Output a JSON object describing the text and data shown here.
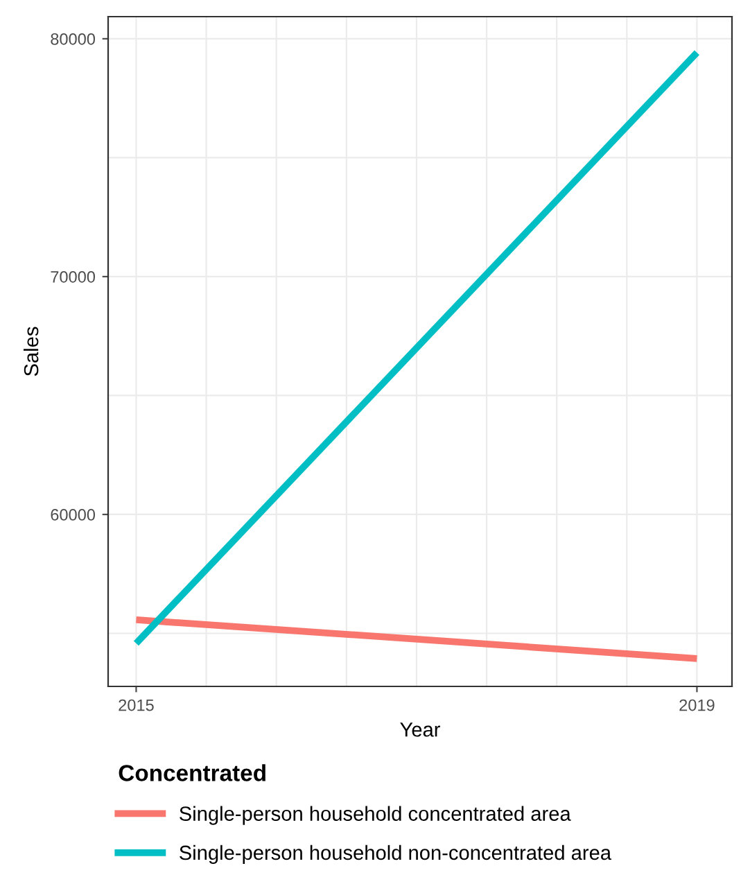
{
  "chart_data": {
    "type": "line",
    "xlabel": "Year",
    "ylabel": "Sales",
    "legend_title": "Concentrated",
    "x": [
      2015,
      2019
    ],
    "series": [
      {
        "name": "Single-person household concentrated area",
        "color": "#f8766d",
        "values": [
          55570,
          53940
        ]
      },
      {
        "name": "Single-person household non-concentrated area",
        "color": "#00bfc4",
        "values": [
          54580,
          79420
        ]
      }
    ],
    "xlim": [
      2014.8,
      2019.25
    ],
    "xticks": [
      2015,
      {
        "value": 2015.5,
        "label": null
      },
      {
        "value": 2016,
        "label": null
      },
      {
        "value": 2016.5,
        "label": null
      },
      {
        "value": 2017,
        "label": null
      },
      {
        "value": 2017.5,
        "label": null
      },
      {
        "value": 2018,
        "label": null
      },
      {
        "value": 2018.5,
        "label": null
      },
      2019
    ],
    "ylim": [
      52770,
      80930
    ],
    "yticks": [
      {
        "value": 55000,
        "label": null
      },
      60000,
      {
        "value": 65000,
        "label": null
      },
      70000,
      {
        "value": 75000,
        "label": null
      },
      80000
    ],
    "grid": true,
    "legend": "bottom",
    "marker": "none",
    "line_style": "solid"
  }
}
